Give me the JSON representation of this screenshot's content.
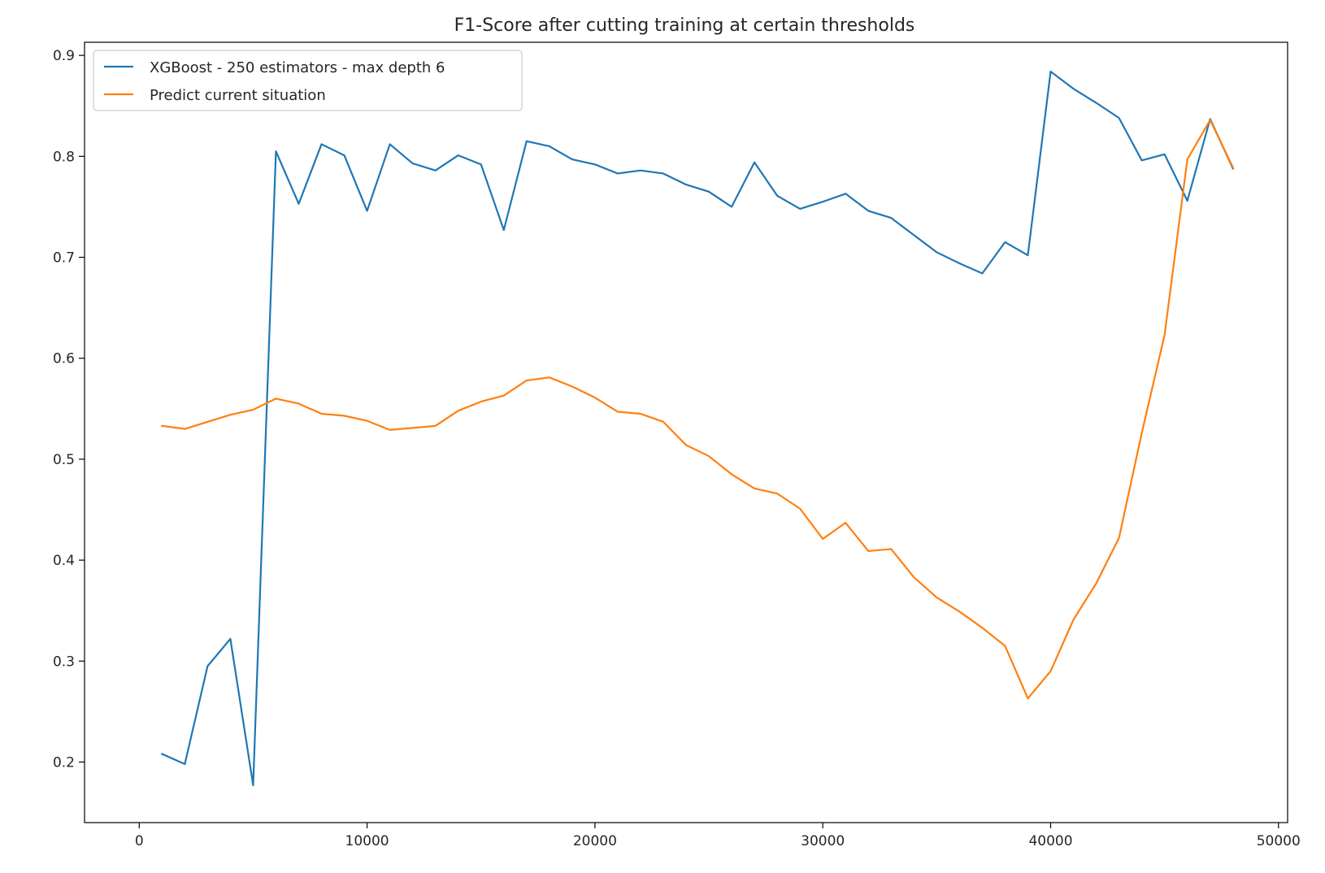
{
  "chart_data": {
    "type": "line",
    "title": "F1-Score after cutting training at certain thresholds",
    "xlabel": "",
    "ylabel": "",
    "xlim": [
      -2400,
      50400
    ],
    "ylim": [
      0.14,
      0.913
    ],
    "xticks": [
      0,
      10000,
      20000,
      30000,
      40000,
      50000
    ],
    "yticks": [
      0.2,
      0.3,
      0.4,
      0.5,
      0.6,
      0.7,
      0.8,
      0.9
    ],
    "grid": false,
    "legend": "top-left",
    "x": [
      1000,
      2000,
      3000,
      4000,
      5000,
      6000,
      7000,
      8000,
      9000,
      10000,
      11000,
      12000,
      13000,
      14000,
      15000,
      16000,
      17000,
      18000,
      19000,
      20000,
      21000,
      22000,
      23000,
      24000,
      25000,
      26000,
      27000,
      28000,
      29000,
      30000,
      31000,
      32000,
      33000,
      34000,
      35000,
      36000,
      37000,
      38000,
      39000,
      40000,
      41000,
      42000,
      43000,
      44000,
      45000,
      46000,
      47000,
      48000
    ],
    "series": [
      {
        "name": "XGBoost - 250 estimators - max depth 6",
        "color": "#1f77b4",
        "values": [
          0.208,
          0.198,
          0.295,
          0.322,
          0.177,
          0.805,
          0.753,
          0.812,
          0.801,
          0.746,
          0.812,
          0.793,
          0.786,
          0.801,
          0.792,
          0.727,
          0.815,
          0.81,
          0.797,
          0.792,
          0.783,
          0.786,
          0.783,
          0.772,
          0.765,
          0.75,
          0.794,
          0.761,
          0.748,
          0.755,
          0.763,
          0.746,
          0.739,
          0.722,
          0.705,
          0.694,
          0.684,
          0.715,
          0.702,
          0.884,
          0.867,
          0.853,
          0.838,
          0.796,
          0.802,
          0.756,
          0.837,
          0.788
        ]
      },
      {
        "name": "Predict current situation",
        "color": "#ff7f0e",
        "values": [
          0.533,
          0.53,
          0.537,
          0.544,
          0.549,
          0.56,
          0.555,
          0.545,
          0.543,
          0.538,
          0.529,
          0.531,
          0.533,
          0.548,
          0.557,
          0.563,
          0.578,
          0.581,
          0.572,
          0.561,
          0.547,
          0.545,
          0.537,
          0.514,
          0.503,
          0.485,
          0.471,
          0.466,
          0.451,
          0.421,
          0.437,
          0.409,
          0.411,
          0.383,
          0.363,
          0.349,
          0.333,
          0.315,
          0.263,
          0.29,
          0.341,
          0.377,
          0.422,
          0.526,
          0.623,
          0.797,
          0.836,
          0.789
        ]
      }
    ]
  }
}
